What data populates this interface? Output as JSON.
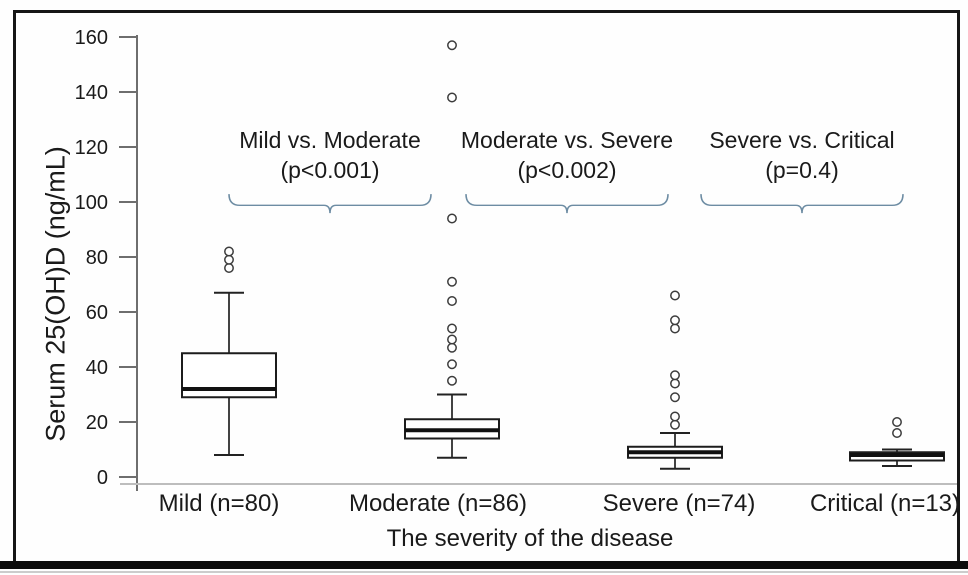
{
  "chart_data": {
    "type": "boxplot",
    "title": "",
    "xlabel": "The severity of the disease",
    "ylabel": "Serum 25(OH)D (ng/mL)",
    "ylim": [
      0,
      160
    ],
    "yticks": [
      0,
      20,
      40,
      60,
      80,
      100,
      120,
      140,
      160
    ],
    "grid": false,
    "legend": "none",
    "categories": [
      "Mild (n=80)",
      "Moderate (n=86)",
      "Severe (n=74)",
      "Critical (n=13)"
    ],
    "series": [
      {
        "name": "Mild",
        "n": 80,
        "whisker_low": 8,
        "q1": 29,
        "median": 32,
        "q3": 45,
        "whisker_high": 67,
        "outliers": [
          76,
          79,
          82
        ]
      },
      {
        "name": "Moderate",
        "n": 86,
        "whisker_low": 7,
        "q1": 14,
        "median": 17,
        "q3": 21,
        "whisker_high": 30,
        "outliers": [
          35,
          41,
          47,
          50,
          54,
          64,
          71,
          94,
          138,
          157
        ]
      },
      {
        "name": "Severe",
        "n": 74,
        "whisker_low": 3,
        "q1": 7,
        "median": 9,
        "q3": 11,
        "whisker_high": 16,
        "outliers": [
          19,
          22,
          29,
          34,
          37,
          54,
          57,
          66
        ]
      },
      {
        "name": "Critical",
        "n": 13,
        "whisker_low": 4,
        "q1": 6,
        "median": 8,
        "q3": 9,
        "whisker_high": 10,
        "outliers": [
          16,
          20
        ]
      }
    ]
  },
  "annotations": [
    {
      "label": "Mild vs. Moderate",
      "p_value": "(p<0.001)"
    },
    {
      "label": "Moderate vs. Severe",
      "p_value": "(p<0.002)"
    },
    {
      "label": "Severe vs. Critical",
      "p_value": "(p=0.4)"
    }
  ],
  "colors": {
    "brace": "#6d8ca3",
    "box_stroke": "#1c1c1c",
    "median": "#111111",
    "whisker": "#222222",
    "outlier_stroke": "#3c3c3c",
    "axis": "#6e6e6e",
    "baseline": "#bdbdbd",
    "text": "#1a1a1a",
    "frame": "#161616"
  }
}
